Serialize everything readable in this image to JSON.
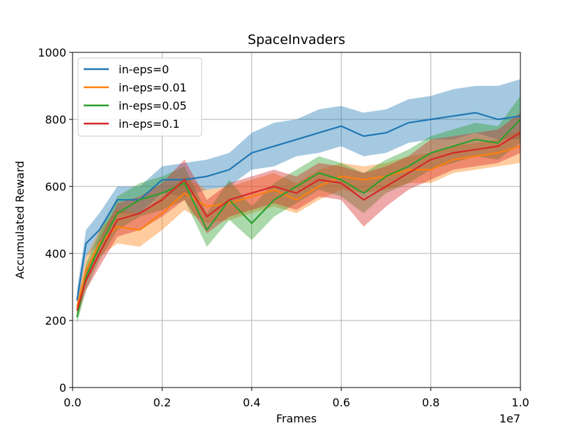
{
  "chart_data": {
    "type": "line",
    "title": "SpaceInvaders",
    "xlabel": "Frames",
    "ylabel": "Accumulated Reward",
    "x_scale_label": "1e7",
    "xlim": [
      0,
      1.0
    ],
    "ylim": [
      0,
      1000
    ],
    "xticks": [
      "0.0",
      "0.2",
      "0.4",
      "0.6",
      "0.8",
      "1.0"
    ],
    "yticks": [
      "0",
      "200",
      "400",
      "600",
      "800",
      "1000"
    ],
    "grid": true,
    "legend_position": "top-left",
    "x": [
      0.01,
      0.03,
      0.06,
      0.1,
      0.15,
      0.2,
      0.25,
      0.3,
      0.35,
      0.4,
      0.45,
      0.5,
      0.55,
      0.6,
      0.65,
      0.7,
      0.75,
      0.8,
      0.85,
      0.9,
      0.95,
      1.0
    ],
    "series": [
      {
        "name": "in-eps=0",
        "color": "#1f77b4",
        "values": [
          260,
          430,
          470,
          560,
          560,
          620,
          620,
          630,
          650,
          700,
          720,
          740,
          760,
          780,
          750,
          760,
          790,
          800,
          810,
          820,
          800,
          810
        ],
        "lower": [
          230,
          390,
          430,
          520,
          520,
          580,
          570,
          590,
          600,
          650,
          660,
          690,
          700,
          720,
          690,
          700,
          730,
          740,
          740,
          760,
          740,
          740
        ],
        "upper": [
          290,
          470,
          520,
          600,
          600,
          660,
          670,
          680,
          700,
          760,
          790,
          800,
          830,
          840,
          820,
          830,
          860,
          870,
          890,
          900,
          900,
          920
        ]
      },
      {
        "name": "in-eps=0.01",
        "color": "#ff7f0e",
        "values": [
          240,
          350,
          430,
          480,
          470,
          520,
          580,
          540,
          550,
          570,
          590,
          560,
          600,
          630,
          620,
          630,
          650,
          650,
          680,
          690,
          700,
          720
        ],
        "lower": [
          220,
          310,
          390,
          430,
          420,
          470,
          530,
          490,
          500,
          520,
          540,
          520,
          560,
          590,
          580,
          590,
          610,
          610,
          640,
          650,
          660,
          670
        ],
        "upper": [
          260,
          390,
          470,
          530,
          520,
          570,
          630,
          590,
          600,
          620,
          640,
          610,
          650,
          670,
          660,
          670,
          690,
          700,
          720,
          730,
          740,
          770
        ]
      },
      {
        "name": "in-eps=0.05",
        "color": "#2ca02c",
        "values": [
          210,
          330,
          420,
          520,
          560,
          580,
          610,
          470,
          560,
          490,
          560,
          600,
          640,
          620,
          580,
          630,
          660,
          700,
          720,
          740,
          730,
          800
        ],
        "lower": [
          190,
          290,
          380,
          470,
          510,
          530,
          560,
          420,
          500,
          440,
          510,
          550,
          590,
          570,
          520,
          580,
          610,
          650,
          670,
          690,
          680,
          730
        ],
        "upper": [
          230,
          370,
          460,
          570,
          610,
          630,
          660,
          520,
          620,
          540,
          610,
          650,
          690,
          670,
          640,
          680,
          710,
          750,
          770,
          790,
          780,
          870
        ]
      },
      {
        "name": "in-eps=0.1",
        "color": "#d62728",
        "values": [
          230,
          320,
          400,
          500,
          520,
          560,
          620,
          510,
          560,
          580,
          600,
          580,
          620,
          610,
          560,
          600,
          640,
          680,
          700,
          710,
          720,
          760
        ],
        "lower": [
          210,
          290,
          360,
          450,
          470,
          510,
          560,
          460,
          510,
          530,
          550,
          530,
          570,
          560,
          480,
          540,
          590,
          620,
          650,
          660,
          670,
          700
        ],
        "upper": [
          250,
          350,
          440,
          550,
          570,
          610,
          680,
          560,
          610,
          630,
          650,
          630,
          670,
          660,
          640,
          660,
          690,
          740,
          750,
          760,
          770,
          820
        ]
      }
    ]
  }
}
